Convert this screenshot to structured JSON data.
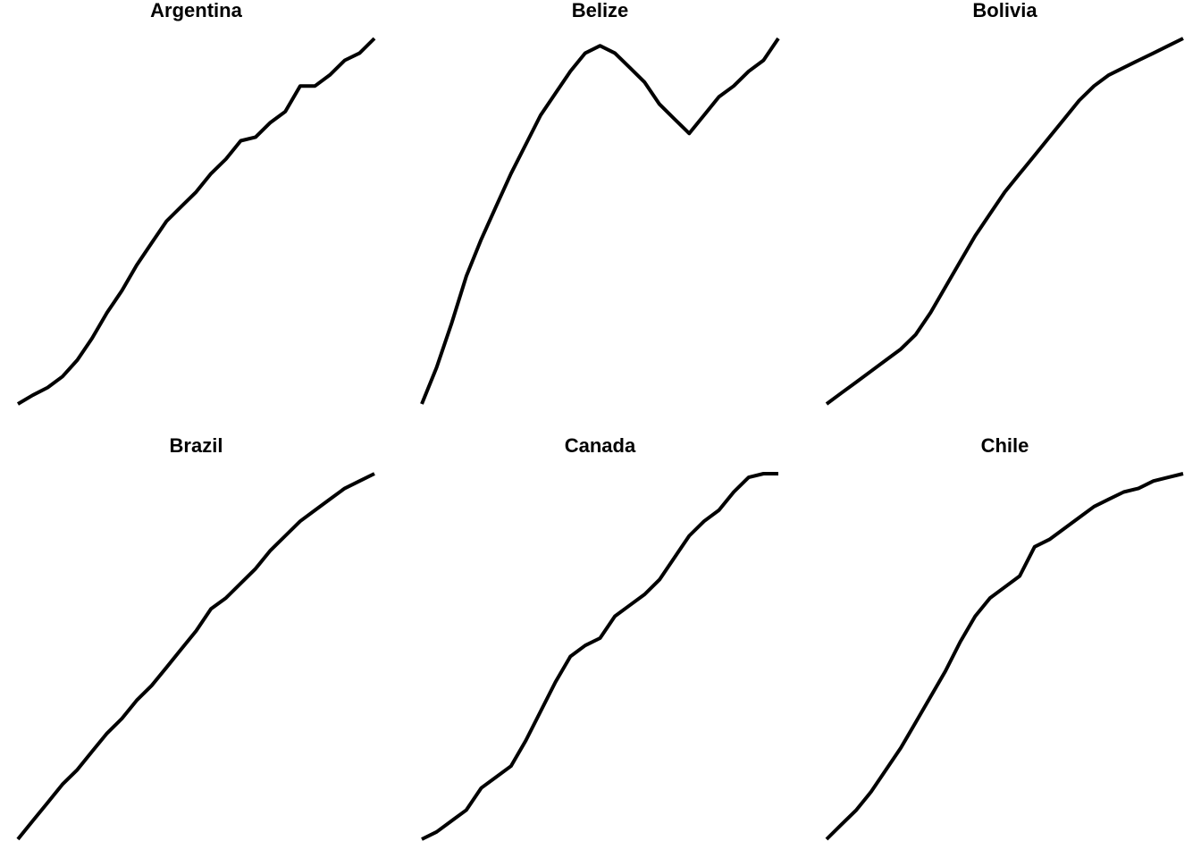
{
  "chart_data": [
    {
      "type": "line",
      "title": "Argentina",
      "color": "#000000",
      "ylim": [
        0,
        100
      ],
      "values": [
        0,
        2.4,
        4.5,
        7.5,
        12,
        18,
        25,
        31,
        38,
        44,
        50,
        54,
        58,
        63,
        67,
        72,
        73,
        77,
        80,
        87,
        87,
        90,
        94,
        96,
        100
      ]
    },
    {
      "type": "line",
      "title": "Belize",
      "color": "#000000",
      "ylim": [
        0,
        100
      ],
      "values": [
        0,
        10,
        22,
        35,
        45,
        54,
        63,
        71,
        79,
        85,
        91,
        96,
        98,
        96,
        92,
        88,
        82,
        78,
        74,
        79,
        84,
        87,
        91,
        94,
        100
      ]
    },
    {
      "type": "line",
      "title": "Bolivia",
      "color": "#000000",
      "ylim": [
        0,
        100
      ],
      "values": [
        0,
        3,
        6,
        9,
        12,
        15,
        19,
        25,
        32,
        39,
        46,
        52,
        58,
        63,
        68,
        73,
        78,
        83,
        87,
        90,
        92,
        94,
        96,
        98,
        100
      ]
    },
    {
      "type": "line",
      "title": "Brazil",
      "color": "#000000",
      "ylim": [
        0,
        100
      ],
      "values": [
        0,
        5,
        10,
        15,
        19,
        24,
        29,
        33,
        38,
        42,
        47,
        52,
        57,
        63,
        66,
        70,
        74,
        79,
        83,
        87,
        90,
        93,
        96,
        98,
        100
      ]
    },
    {
      "type": "line",
      "title": "Canada",
      "color": "#000000",
      "ylim": [
        0,
        100
      ],
      "values": [
        0,
        2,
        5,
        8,
        14,
        17,
        20,
        27,
        35,
        43,
        50,
        53,
        55,
        61,
        64,
        67,
        71,
        77,
        83,
        87,
        90,
        95,
        99,
        100,
        100
      ]
    },
    {
      "type": "line",
      "title": "Chile",
      "color": "#000000",
      "ylim": [
        0,
        100
      ],
      "values": [
        0,
        4,
        8,
        13,
        19,
        25,
        32,
        39,
        46,
        54,
        61,
        66,
        69,
        72,
        80,
        82,
        85,
        88,
        91,
        93,
        95,
        96,
        98,
        99,
        100
      ]
    }
  ]
}
